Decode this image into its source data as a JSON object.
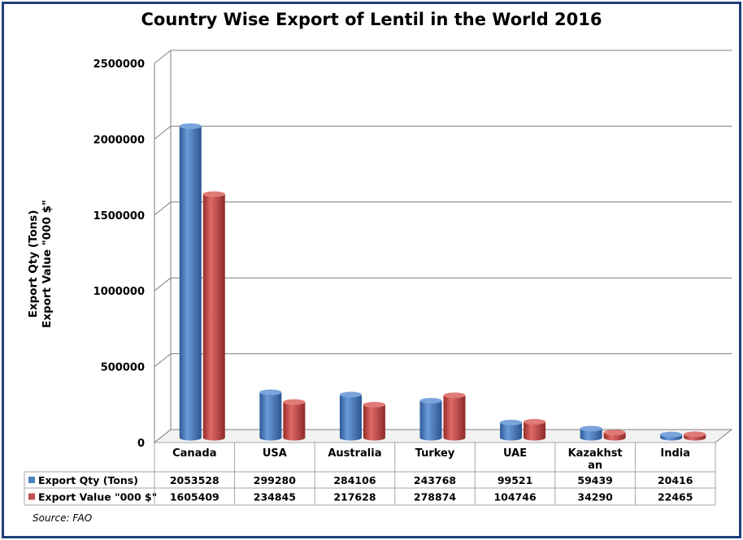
{
  "chart_data": {
    "type": "bar",
    "title": "Country Wise Export of Lentil in the World 2016",
    "ylabel_lines": [
      "Export Qty (Tons)",
      "Export Value \"000 $\""
    ],
    "categories": [
      "Canada",
      "USA",
      "Australia",
      "Turkey",
      "UAE",
      "Kazakhstan",
      "India"
    ],
    "category_label_lines": [
      [
        "Canada"
      ],
      [
        "USA"
      ],
      [
        "Australia"
      ],
      [
        "Turkey"
      ],
      [
        "UAE"
      ],
      [
        "Kazakhst",
        "an"
      ],
      [
        "India"
      ]
    ],
    "series": [
      {
        "name": "Export Qty (Tons)",
        "color": "#4f81bd",
        "values": [
          2053528,
          299280,
          284106,
          243768,
          99521,
          59439,
          20416
        ]
      },
      {
        "name": "Export Value \"000 $\"",
        "color": "#c0504d",
        "values": [
          1605409,
          234845,
          217628,
          278874,
          104746,
          34290,
          22465
        ]
      }
    ],
    "yticks": [
      0,
      500000,
      1000000,
      1500000,
      2000000,
      2500000
    ],
    "ylim": [
      0,
      2500000
    ],
    "grid": true,
    "legend": "data-table",
    "source": "Source: FAO"
  }
}
